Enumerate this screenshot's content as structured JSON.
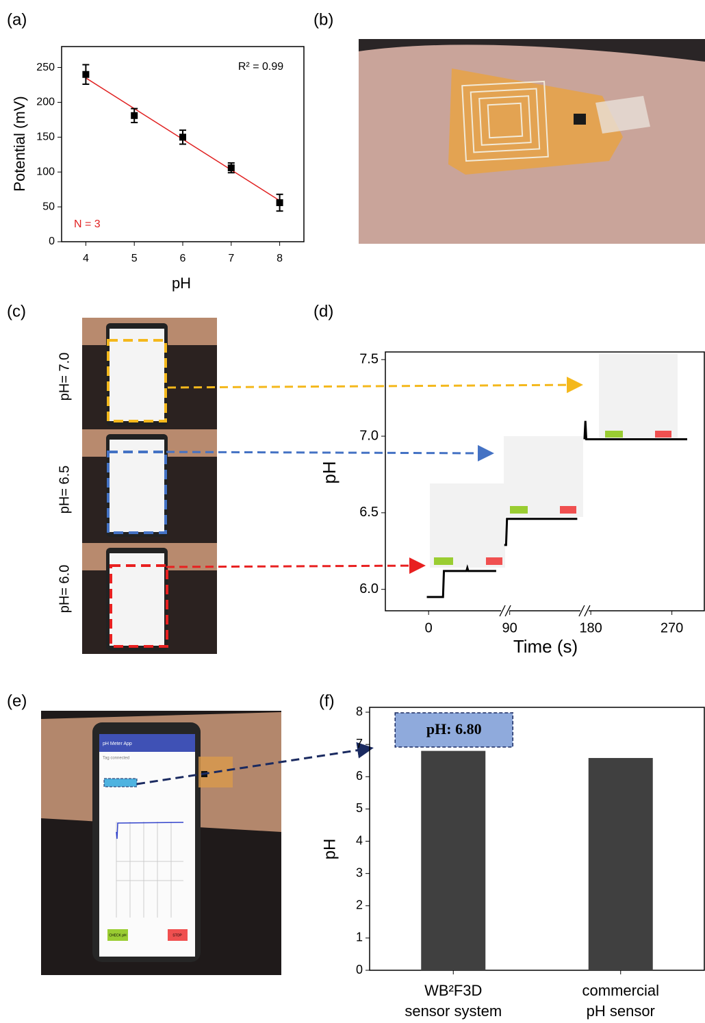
{
  "panel_labels": [
    "(a)",
    "(b)",
    "(c)",
    "(d)",
    "(e)",
    "(f)"
  ],
  "photo_c": {
    "labels": [
      "pH= 7.0",
      "pH= 6.5",
      "pH= 6.0"
    ]
  },
  "phone_app": {
    "title": "pH Meter App",
    "status": "Tag connected",
    "check_button": "CHECK pH",
    "stop_button": "STOP"
  },
  "chart_data": [
    {
      "type": "scatter",
      "xlabel": "pH",
      "ylabel": "Potential (mV)",
      "x": [
        4,
        5,
        6,
        7,
        8
      ],
      "values": [
        240,
        181,
        150,
        106,
        56
      ],
      "errors": [
        14,
        10,
        10,
        7,
        12
      ],
      "color": "#000000",
      "fit_line": {
        "x": [
          4,
          8
        ],
        "values": [
          235,
          59
        ],
        "color": "#e02020"
      },
      "annotations": [
        {
          "text": "R² = 0.99",
          "color": "#000000"
        },
        {
          "text": "N = 3",
          "color": "#e02020"
        }
      ],
      "xlim": [
        3.5,
        8.5
      ],
      "ylim": [
        0,
        280
      ],
      "xticks": [
        4,
        5,
        6,
        7,
        8
      ],
      "yticks": [
        0,
        50,
        100,
        150,
        200,
        250
      ]
    },
    {
      "type": "line",
      "xlabel": "Time (s)",
      "ylabel": "pH",
      "x": [
        -2,
        16,
        17,
        42,
        43,
        44,
        75,
        80,
        84,
        86,
        87,
        165,
        169,
        173,
        174,
        175,
        287
      ],
      "values": [
        5.95,
        5.95,
        6.12,
        6.12,
        6.14,
        6.12,
        6.12,
        null,
        6.29,
        6.29,
        6.46,
        6.46,
        null,
        6.98,
        7.1,
        6.98,
        6.98
      ],
      "color": "#000000",
      "x_breaks": [
        85,
        173
      ],
      "xlim": [
        -48,
        306
      ],
      "ylim": [
        5.86,
        7.55
      ],
      "xticks": [
        0,
        90,
        180,
        270
      ],
      "yticks": [
        {
          "value": 6,
          "label": "6.0"
        },
        {
          "value": 6.5,
          "label": "6.5"
        },
        {
          "value": 7,
          "label": "7.0"
        },
        {
          "value": 7.5,
          "label": "7.5"
        }
      ]
    },
    {
      "type": "bar",
      "ylabel": "pH",
      "categories": [
        [
          "WB²F3D",
          "sensor system"
        ],
        [
          "commercial",
          "pH sensor"
        ]
      ],
      "values": [
        6.8,
        6.58
      ],
      "value_labels": [
        "pH: 6.80",
        null
      ],
      "color": "#404040",
      "ylim": [
        0,
        8.15
      ],
      "yticks": [
        0,
        1,
        2,
        3,
        4,
        5,
        6,
        7,
        8
      ]
    }
  ]
}
